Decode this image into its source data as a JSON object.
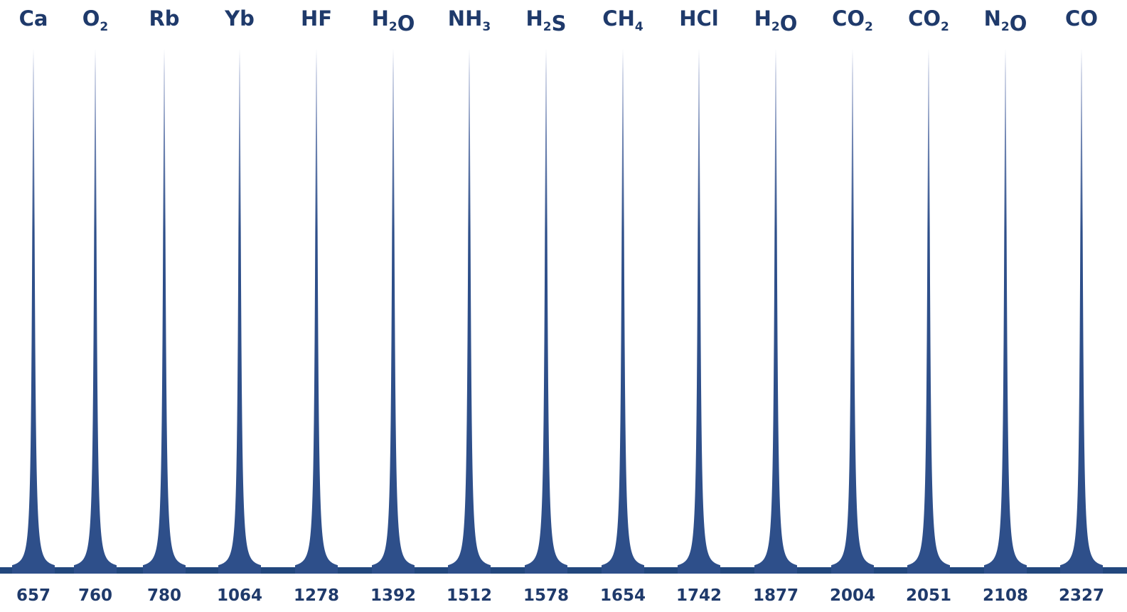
{
  "chart_data": {
    "type": "line",
    "peaks": [
      {
        "species": [
          {
            "t": "Ca"
          }
        ],
        "wavelength": "657"
      },
      {
        "species": [
          {
            "t": "O"
          },
          {
            "t": "2",
            "sub": true
          }
        ],
        "wavelength": "760"
      },
      {
        "species": [
          {
            "t": "Rb"
          }
        ],
        "wavelength": "780"
      },
      {
        "species": [
          {
            "t": "Yb"
          }
        ],
        "wavelength": "1064"
      },
      {
        "species": [
          {
            "t": "HF"
          }
        ],
        "wavelength": "1278"
      },
      {
        "species": [
          {
            "t": "H"
          },
          {
            "t": "2",
            "sub": true
          },
          {
            "t": "O"
          }
        ],
        "wavelength": "1392"
      },
      {
        "species": [
          {
            "t": "NH"
          },
          {
            "t": "3",
            "sub": true
          }
        ],
        "wavelength": "1512"
      },
      {
        "species": [
          {
            "t": "H"
          },
          {
            "t": "2",
            "sub": true
          },
          {
            "t": "S"
          }
        ],
        "wavelength": "1578"
      },
      {
        "species": [
          {
            "t": "CH"
          },
          {
            "t": "4",
            "sub": true
          }
        ],
        "wavelength": "1654"
      },
      {
        "species": [
          {
            "t": "HCl"
          }
        ],
        "wavelength": "1742"
      },
      {
        "species": [
          {
            "t": "H"
          },
          {
            "t": "2",
            "sub": true
          },
          {
            "t": "O"
          }
        ],
        "wavelength": "1877"
      },
      {
        "species": [
          {
            "t": "CO"
          },
          {
            "t": "2",
            "sub": true
          }
        ],
        "wavelength": "2004"
      },
      {
        "species": [
          {
            "t": "CO"
          },
          {
            "t": "2",
            "sub": true
          }
        ],
        "wavelength": "2051"
      },
      {
        "species": [
          {
            "t": "N"
          },
          {
            "t": "2",
            "sub": true
          },
          {
            "t": "O"
          }
        ],
        "wavelength": "2108"
      },
      {
        "species": [
          {
            "t": "CO"
          }
        ],
        "wavelength": "2327"
      }
    ],
    "relative_peak_height": 1.0,
    "x_axis": "categorical, evenly spaced peaks",
    "grid": false,
    "legend": "none",
    "colors": {
      "peak_top": "#b4bddb",
      "peak_body": "#2e4f8a",
      "baseline": "#22477d",
      "text": "#1f3a6b"
    }
  }
}
